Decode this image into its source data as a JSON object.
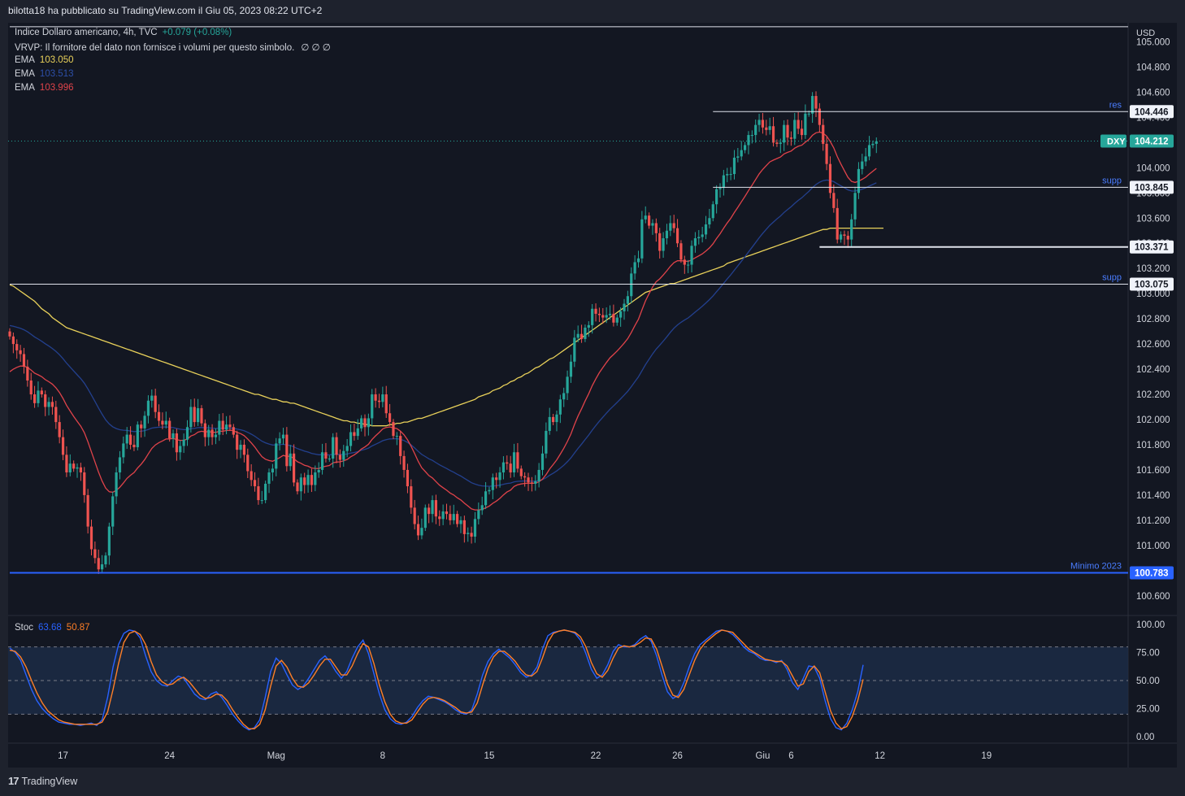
{
  "header": {
    "text": "bilotta18 ha pubblicato su TradingView.com il Giu 05, 2023 08:22 UTC+2"
  },
  "legend": {
    "symbol_line": "Indice Dollaro americano, 4h, TVC",
    "change": "+0.079 (+0.08%)",
    "vrvp": "VRVP: Il fornitore del dato non fornisce i volumi per questo simbolo.",
    "vrvp_marks": "∅ ∅ ∅",
    "ema_label": "EMA",
    "ema1_value": "103.050",
    "ema2_value": "103.513",
    "ema3_value": "103.996"
  },
  "stoch_legend": {
    "label": "Stoc",
    "k": "63.68",
    "d": "50.87"
  },
  "footer": {
    "brand": "TradingView",
    "logo_mark": "17"
  },
  "colors": {
    "background": "#131722",
    "up": "#26a69a",
    "down": "#ef5350",
    "ema1": "#e9d15a",
    "ema2": "#1f3d8f",
    "ema3": "#e0434a",
    "stoch_k": "#2962ff",
    "stoch_d": "#ff7f27",
    "support_blue": "#2962ff",
    "text_grey": "#d1d4dc"
  },
  "chart_data": {
    "type": "candlestick",
    "symbol": "DXY",
    "currency_label": "USD",
    "timeframe": "4h",
    "price_axis": {
      "range": [
        100.45,
        105.1
      ],
      "ticks": [
        "105.000",
        "104.800",
        "104.600",
        "104.400",
        "104.200",
        "104.000",
        "103.800",
        "103.600",
        "103.400",
        "103.200",
        "103.000",
        "102.800",
        "102.600",
        "102.400",
        "102.200",
        "102.000",
        "101.800",
        "101.600",
        "101.400",
        "101.200",
        "101.000",
        "100.800",
        "100.600"
      ]
    },
    "time_axis": {
      "labels": [
        "17",
        "24",
        "Mag",
        "8",
        "15",
        "22",
        "26",
        "Giu",
        "6",
        "12",
        "19"
      ],
      "label_bar_index": [
        15,
        45,
        75,
        105,
        135,
        165,
        188,
        212,
        220,
        245,
        275
      ]
    },
    "last_price": {
      "label": "DXY",
      "value": "104.212"
    },
    "horizontal_lines": [
      {
        "price": 105.12,
        "label": "",
        "tag": "",
        "from_bar": 0,
        "color": "#e0e3eb"
      },
      {
        "price": 104.446,
        "label": "res",
        "tag": "104.446",
        "from_bar": 198,
        "color": "#e0e3eb"
      },
      {
        "price": 103.845,
        "label": "supp",
        "tag": "103.845",
        "from_bar": 198,
        "color": "#e0e3eb"
      },
      {
        "price": 103.371,
        "label": "",
        "tag": "103.371",
        "from_bar": 228,
        "color": "#e0e3eb"
      },
      {
        "price": 103.075,
        "label": "supp",
        "tag": "103.075",
        "from_bar": 0,
        "color": "#e0e3eb"
      },
      {
        "price": 100.783,
        "label": "Minimo 2023",
        "tag": "100.783",
        "from_bar": 0,
        "color": "#2962ff"
      }
    ],
    "closes": [
      102.66,
      102.6,
      102.55,
      102.52,
      102.42,
      102.31,
      102.2,
      102.13,
      102.23,
      102.2,
      102.1,
      102.14,
      102.1,
      101.98,
      101.86,
      101.72,
      101.58,
      101.65,
      101.61,
      101.62,
      101.58,
      101.4,
      101.15,
      100.97,
      100.9,
      100.81,
      100.85,
      100.92,
      101.15,
      101.39,
      101.58,
      101.7,
      101.81,
      101.88,
      101.8,
      101.78,
      101.96,
      101.93,
      102.03,
      102.15,
      102.19,
      102.06,
      101.99,
      101.96,
      101.99,
      101.85,
      101.89,
      101.74,
      101.79,
      101.84,
      101.94,
      102.1,
      101.98,
      102.09,
      101.97,
      101.86,
      101.92,
      101.86,
      101.88,
      101.99,
      101.92,
      101.96,
      101.94,
      101.88,
      101.76,
      101.8,
      101.72,
      101.59,
      101.52,
      101.47,
      101.36,
      101.36,
      101.49,
      101.58,
      101.61,
      101.81,
      101.85,
      101.88,
      101.63,
      101.73,
      101.5,
      101.43,
      101.54,
      101.48,
      101.56,
      101.48,
      101.58,
      101.6,
      101.74,
      101.69,
      101.69,
      101.86,
      101.72,
      101.68,
      101.75,
      101.79,
      101.9,
      101.87,
      101.93,
      102.01,
      101.94,
      102.01,
      102.2,
      102.15,
      102.14,
      102.2,
      102.05,
      101.98,
      101.87,
      101.87,
      101.71,
      101.6,
      101.47,
      101.3,
      101.17,
      101.08,
      101.14,
      101.3,
      101.25,
      101.36,
      101.23,
      101.21,
      101.27,
      101.25,
      101.2,
      101.25,
      101.17,
      101.2,
      101.09,
      101.1,
      101.07,
      101.21,
      101.28,
      101.32,
      101.43,
      101.44,
      101.54,
      101.52,
      101.58,
      101.66,
      101.65,
      101.58,
      101.74,
      101.61,
      101.55,
      101.54,
      101.5,
      101.49,
      101.51,
      101.6,
      101.73,
      101.91,
      102.02,
      101.98,
      102.04,
      102.16,
      102.21,
      102.34,
      102.46,
      102.65,
      102.68,
      102.64,
      102.73,
      102.75,
      102.88,
      102.84,
      102.83,
      102.81,
      102.83,
      102.84,
      102.77,
      102.81,
      102.86,
      102.92,
      102.98,
      103.16,
      103.25,
      103.28,
      103.59,
      103.62,
      103.54,
      103.56,
      103.48,
      103.34,
      103.44,
      103.5,
      103.56,
      103.52,
      103.4,
      103.27,
      103.23,
      103.23,
      103.38,
      103.44,
      103.45,
      103.47,
      103.55,
      103.6,
      103.71,
      103.83,
      103.84,
      103.94,
      103.95,
      103.95,
      104.08,
      104.09,
      104.14,
      104.18,
      104.26,
      104.26,
      104.34,
      104.38,
      104.32,
      104.3,
      104.33,
      104.2,
      104.19,
      104.2,
      104.34,
      104.24,
      104.23,
      104.38,
      104.31,
      104.26,
      104.43,
      104.43,
      104.57,
      104.47,
      104.34,
      104.19,
      104.03,
      103.8,
      103.68,
      103.43,
      103.47,
      103.46,
      103.43,
      103.59,
      103.8,
      103.99,
      104.05,
      104.09,
      104.18,
      104.19,
      104.21
    ],
    "ema_200": [
      103.07,
      103.06,
      103.04,
      103.02,
      103.0,
      102.98,
      102.96,
      102.94,
      102.91,
      102.88,
      102.86,
      102.84,
      102.81,
      102.79,
      102.77,
      102.75,
      102.73,
      102.72,
      102.71,
      102.7,
      102.69,
      102.68,
      102.67,
      102.66,
      102.65,
      102.64,
      102.63,
      102.62,
      102.61,
      102.6,
      102.59,
      102.58,
      102.57,
      102.56,
      102.55,
      102.54,
      102.53,
      102.52,
      102.51,
      102.5,
      102.49,
      102.48,
      102.47,
      102.46,
      102.45,
      102.44,
      102.43,
      102.42,
      102.41,
      102.4,
      102.39,
      102.38,
      102.37,
      102.36,
      102.35,
      102.34,
      102.33,
      102.32,
      102.31,
      102.3,
      102.29,
      102.28,
      102.27,
      102.26,
      102.25,
      102.24,
      102.23,
      102.22,
      102.21,
      102.2,
      102.2,
      102.19,
      102.18,
      102.17,
      102.16,
      102.16,
      102.15,
      102.14,
      102.14,
      102.13,
      102.13,
      102.12,
      102.11,
      102.1,
      102.09,
      102.08,
      102.07,
      102.06,
      102.05,
      102.04,
      102.03,
      102.02,
      102.01,
      102.0,
      101.99,
      101.99,
      101.98,
      101.98,
      101.97,
      101.97,
      101.96,
      101.96,
      101.95,
      101.95,
      101.95,
      101.95,
      101.95,
      101.96,
      101.96,
      101.97,
      101.97,
      101.98,
      101.98,
      101.99,
      102.0,
      102.01,
      102.01,
      102.02,
      102.03,
      102.04,
      102.05,
      102.06,
      102.07,
      102.08,
      102.09,
      102.1,
      102.11,
      102.12,
      102.13,
      102.14,
      102.15,
      102.16,
      102.18,
      102.19,
      102.2,
      102.21,
      102.23,
      102.24,
      102.25,
      102.27,
      102.28,
      102.3,
      102.31,
      102.33,
      102.34,
      102.36,
      102.37,
      102.39,
      102.41,
      102.42,
      102.44,
      102.46,
      102.48,
      102.49,
      102.51,
      102.53,
      102.55,
      102.57,
      102.59,
      102.61,
      102.63,
      102.65,
      102.67,
      102.69,
      102.71,
      102.73,
      102.75,
      102.77,
      102.79,
      102.81,
      102.83,
      102.85,
      102.87,
      102.89,
      102.91,
      102.93,
      102.95,
      102.97,
      102.99,
      103.01,
      103.02,
      103.03,
      103.04,
      103.05,
      103.06,
      103.07,
      103.08,
      103.08,
      103.09,
      103.1,
      103.11,
      103.12,
      103.13,
      103.14,
      103.15,
      103.16,
      103.17,
      103.18,
      103.19,
      103.2,
      103.21,
      103.22,
      103.24,
      103.25,
      103.26,
      103.27,
      103.28,
      103.29,
      103.3,
      103.31,
      103.32,
      103.33,
      103.34,
      103.35,
      103.36,
      103.37,
      103.38,
      103.39,
      103.4,
      103.41,
      103.42,
      103.43,
      103.44,
      103.45,
      103.46,
      103.47,
      103.48,
      103.49,
      103.5,
      103.51,
      103.51,
      103.52,
      103.52,
      103.52,
      103.52,
      103.52,
      103.52,
      103.52,
      103.52,
      103.52,
      103.52,
      103.52,
      103.52,
      103.52,
      103.52,
      103.52,
      103.52
    ],
    "stoch_axis": {
      "range": [
        0,
        100
      ],
      "ticks": [
        "100.00",
        "75.00",
        "50.00",
        "25.00",
        "0.00"
      ],
      "band": [
        20,
        80
      ],
      "mid": 50
    },
    "stoch_k": [
      79,
      75,
      68,
      55,
      42,
      32,
      25,
      20,
      16,
      13,
      12,
      11,
      11,
      10,
      11,
      12,
      10,
      15,
      35,
      62,
      82,
      92,
      95,
      94,
      88,
      72,
      58,
      50,
      46,
      45,
      50,
      54,
      52,
      45,
      38,
      34,
      33,
      38,
      40,
      35,
      28,
      20,
      14,
      9,
      6,
      8,
      15,
      35,
      58,
      70,
      65,
      55,
      46,
      42,
      45,
      52,
      60,
      68,
      72,
      66,
      58,
      52,
      58,
      70,
      80,
      86,
      74,
      56,
      38,
      24,
      16,
      12,
      11,
      13,
      18,
      26,
      32,
      36,
      35,
      33,
      31,
      28,
      24,
      21,
      20,
      24,
      38,
      55,
      67,
      74,
      78,
      74,
      70,
      64,
      57,
      53,
      55,
      62,
      78,
      90,
      93,
      94,
      95,
      94,
      92,
      86,
      74,
      60,
      52,
      55,
      64,
      76,
      82,
      80,
      80,
      82,
      87,
      90,
      85,
      72,
      55,
      40,
      34,
      37,
      48,
      62,
      74,
      82,
      86,
      90,
      94,
      95,
      94,
      91,
      86,
      80,
      76,
      74,
      70,
      68,
      68,
      66,
      68,
      60,
      48,
      42,
      52,
      63,
      62,
      52,
      32,
      16,
      8,
      6,
      12,
      24,
      40,
      64
    ],
    "stoch_d": [
      77,
      76,
      71,
      62,
      50,
      39,
      30,
      23,
      19,
      15,
      13,
      12,
      11,
      11,
      11,
      11,
      11,
      13,
      22,
      42,
      65,
      84,
      92,
      94,
      91,
      82,
      67,
      55,
      49,
      46,
      47,
      51,
      53,
      49,
      43,
      37,
      34,
      35,
      38,
      37,
      32,
      24,
      17,
      11,
      7,
      7,
      11,
      24,
      45,
      63,
      68,
      62,
      52,
      45,
      44,
      48,
      55,
      63,
      69,
      69,
      62,
      55,
      55,
      63,
      74,
      83,
      80,
      65,
      46,
      31,
      20,
      14,
      12,
      12,
      15,
      22,
      29,
      34,
      35,
      34,
      32,
      29,
      26,
      22,
      21,
      22,
      30,
      46,
      61,
      71,
      76,
      76,
      72,
      67,
      60,
      55,
      54,
      58,
      70,
      84,
      92,
      94,
      95,
      94,
      93,
      89,
      80,
      66,
      56,
      53,
      59,
      70,
      79,
      81,
      80,
      81,
      84,
      88,
      87,
      78,
      63,
      47,
      37,
      35,
      42,
      55,
      68,
      78,
      84,
      88,
      92,
      95,
      94,
      93,
      88,
      83,
      78,
      75,
      72,
      69,
      68,
      67,
      67,
      63,
      54,
      45,
      47,
      58,
      63,
      57,
      40,
      23,
      12,
      7,
      9,
      18,
      32,
      51
    ]
  }
}
